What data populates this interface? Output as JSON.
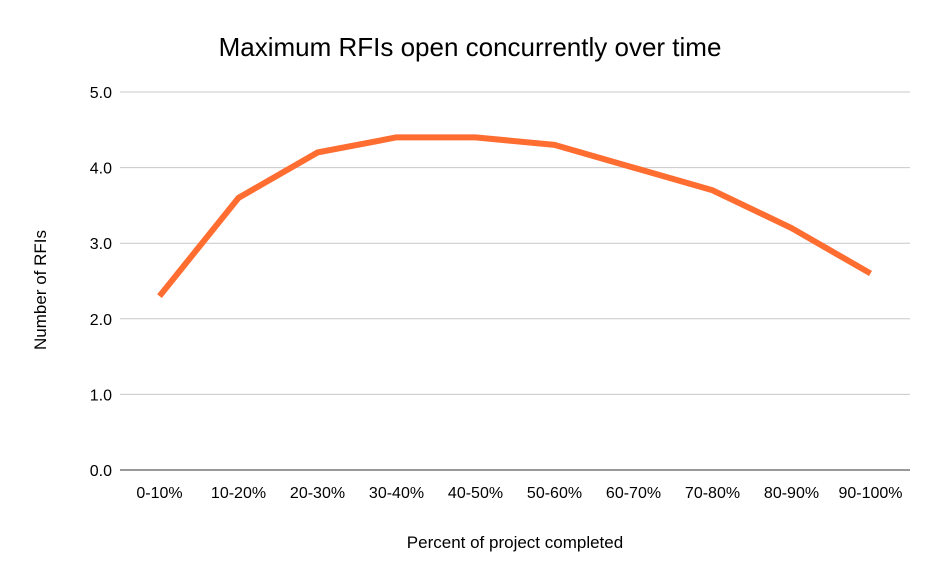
{
  "chart_data": {
    "type": "line",
    "title": "Maximum RFIs open concurrently over time",
    "xlabel": "Percent of project completed",
    "ylabel": "Number of RFIs",
    "categories": [
      "0-10%",
      "10-20%",
      "20-30%",
      "30-40%",
      "40-50%",
      "50-60%",
      "60-70%",
      "70-80%",
      "80-90%",
      "90-100%"
    ],
    "series": [
      {
        "values": [
          2.3,
          3.6,
          4.2,
          4.4,
          4.4,
          4.3,
          4.0,
          3.7,
          3.2,
          2.6
        ],
        "color": "#ff6d31"
      }
    ],
    "ylim": [
      0,
      5
    ],
    "yticks": [
      "0.0",
      "1.0",
      "2.0",
      "3.0",
      "4.0",
      "5.0"
    ],
    "grid": true,
    "legend": "none"
  }
}
